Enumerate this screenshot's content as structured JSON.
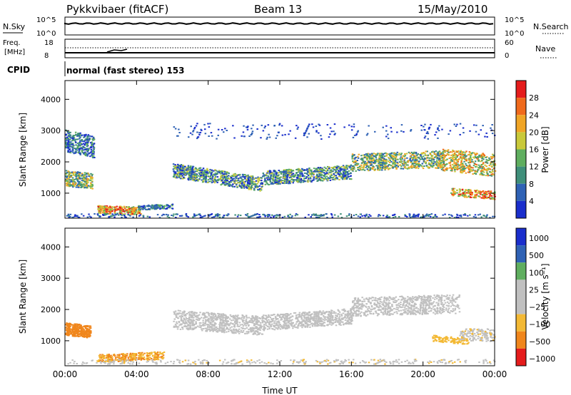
{
  "header": {
    "title": "Pykkvibaer (fitACF)",
    "beam": "Beam 13",
    "date": "15/May/2010"
  },
  "colors": {
    "power_scale": [
      "#1a2ecc",
      "#2f62b5",
      "#3f8f7a",
      "#5fae5f",
      "#c9c93a",
      "#f0a526",
      "#f06a1c",
      "#e51c1c"
    ],
    "velocity_scale": [
      "#1a2ecc",
      "#2f62b5",
      "#5fae5f",
      "#c0c0c0",
      "#c0c0c0",
      "#f3b935",
      "#f0861c",
      "#e51c1c"
    ],
    "axis": "#000000"
  },
  "chart_data": [
    {
      "type": "line",
      "panel": "nsky-nsearch",
      "left_label": "N.Sky",
      "right_label": "N.Search",
      "left_ticks": [
        "10^5",
        "10^0"
      ],
      "right_ticks": [
        "10^5",
        "10^0"
      ],
      "x": [
        "00:00",
        "04:00",
        "08:00",
        "12:00",
        "16:00",
        "20:00",
        "00:00"
      ],
      "note_marks": "noise level trace"
    },
    {
      "type": "line",
      "panel": "freq-nave",
      "left_label_top": "Freq.",
      "left_label_bottom": "[MHz]",
      "right_label": "Nave",
      "left_ticks": [
        "18",
        "8"
      ],
      "right_ticks": [
        "60",
        "0"
      ],
      "cpid_label": "CPID",
      "cpid_text": "normal (fast stereo) 153"
    },
    {
      "type": "heatmap",
      "panel": "power",
      "ylabel": "Slant Range [km]",
      "yticks": [
        1000,
        2000,
        3000,
        4000
      ],
      "ylim": [
        200,
        4600
      ],
      "xticks": [
        "00:00",
        "04:00",
        "08:00",
        "12:00",
        "16:00",
        "20:00",
        "00:00"
      ],
      "xlim_hours": [
        0,
        24
      ],
      "colorbar_label": "Power [dB]",
      "colorbar_ticks": [
        "4",
        "8",
        "12",
        "16",
        "20",
        "24",
        "28"
      ]
    },
    {
      "type": "heatmap",
      "panel": "velocity",
      "ylabel": "Slant Range [km]",
      "yticks": [
        1000,
        2000,
        3000,
        4000
      ],
      "ylim": [
        200,
        4600
      ],
      "xticks": [
        "00:00",
        "04:00",
        "08:00",
        "12:00",
        "16:00",
        "20:00",
        "00:00"
      ],
      "xlim_hours": [
        0,
        24
      ],
      "xlabel": "Time UT",
      "colorbar_label": "Velocity [m s⁻¹]",
      "colorbar_ticks": [
        "1000",
        "500",
        "100",
        "25",
        "−25",
        "−100",
        "−500",
        "−1000"
      ]
    }
  ]
}
